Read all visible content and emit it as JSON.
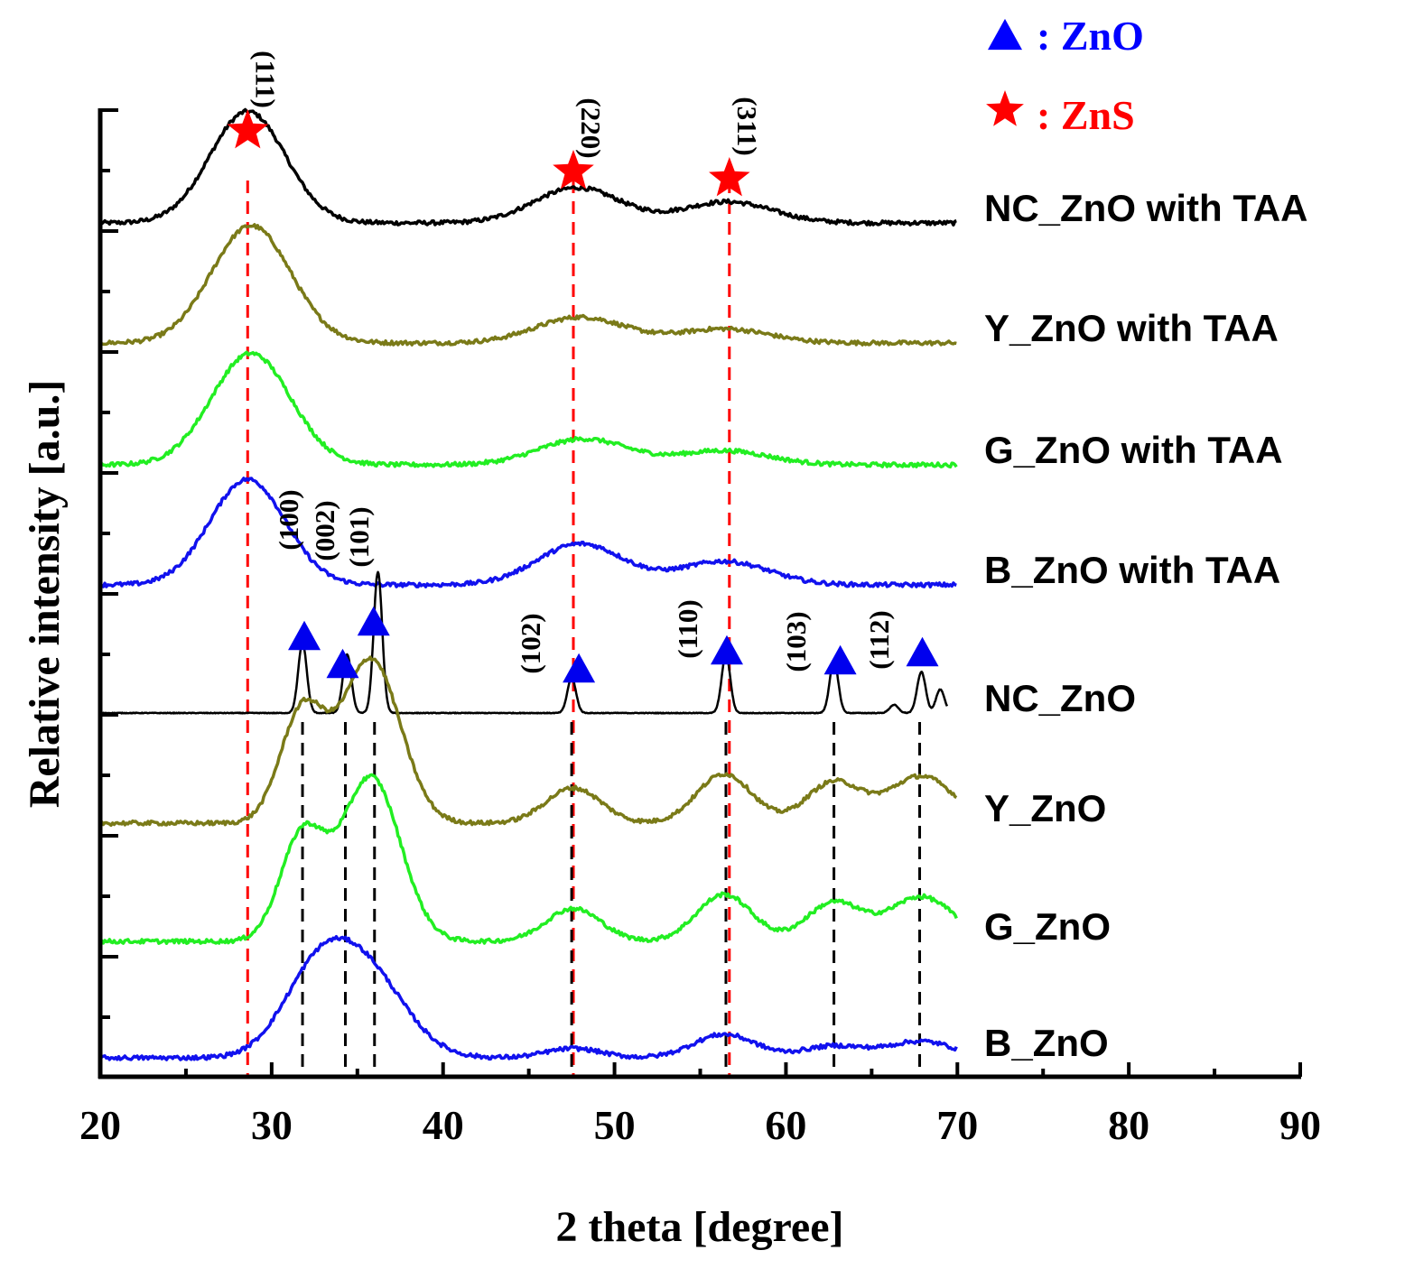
{
  "chart_data": {
    "type": "line",
    "title": "",
    "xlabel": "2 theta [degree]",
    "ylabel": "Relative intensity [a.u.]",
    "xlim": [
      20,
      90
    ],
    "xticks": [
      "20",
      "30",
      "40",
      "50",
      "60",
      "70",
      "80",
      "90"
    ],
    "y_units": "arbitrary (stacked, offset traces)",
    "series": [
      {
        "name": "NC_ZnO with TAA",
        "color": "#000000",
        "baseline": 0.1,
        "peaks": [
          [
            28.6,
            0.095,
            2.2
          ],
          [
            47.8,
            0.03,
            2.5
          ],
          [
            56.6,
            0.018,
            2.6
          ]
        ]
      },
      {
        "name": "Y_ZnO with TAA",
        "color": "#7a7a18",
        "baseline": 0.1,
        "peaks": [
          [
            28.8,
            0.1,
            2.3
          ],
          [
            48.0,
            0.022,
            2.6
          ],
          [
            56.4,
            0.012,
            2.6
          ]
        ]
      },
      {
        "name": "G_ZnO with TAA",
        "color": "#22ee22",
        "baseline": 0.1,
        "peaks": [
          [
            28.8,
            0.095,
            2.3
          ],
          [
            48.2,
            0.022,
            2.6
          ],
          [
            56.4,
            0.012,
            2.6
          ]
        ]
      },
      {
        "name": "B_ZnO with TAA",
        "color": "#1111ee",
        "baseline": 0.1,
        "peaks": [
          [
            28.6,
            0.09,
            2.2
          ],
          [
            48.0,
            0.035,
            2.5
          ],
          [
            56.4,
            0.02,
            2.6
          ]
        ]
      },
      {
        "name": "NC_ZnO",
        "color": "#000000",
        "baseline": 0.1,
        "peaks": [
          [
            31.8,
            0.06,
            0.25
          ],
          [
            34.4,
            0.05,
            0.25
          ],
          [
            36.2,
            0.12,
            0.25
          ],
          [
            47.5,
            0.03,
            0.25
          ],
          [
            56.5,
            0.05,
            0.25
          ],
          [
            62.8,
            0.045,
            0.25
          ],
          [
            66.3,
            0.007,
            0.25
          ],
          [
            67.9,
            0.035,
            0.25
          ],
          [
            69.0,
            0.02,
            0.25
          ]
        ]
      },
      {
        "name": "Y_ZnO",
        "color": "#7a7a18",
        "baseline": 0.1,
        "peaks": [
          [
            31.8,
            0.095,
            1.3
          ],
          [
            35.8,
            0.14,
            1.7
          ],
          [
            47.6,
            0.03,
            1.6
          ],
          [
            56.4,
            0.042,
            1.6
          ],
          [
            62.8,
            0.035,
            1.6
          ],
          [
            67.9,
            0.04,
            1.9
          ]
        ]
      },
      {
        "name": "G_ZnO",
        "color": "#22ee22",
        "baseline": 0.1,
        "peaks": [
          [
            31.8,
            0.09,
            1.3
          ],
          [
            35.8,
            0.14,
            1.7
          ],
          [
            47.6,
            0.028,
            1.6
          ],
          [
            56.4,
            0.04,
            1.6
          ],
          [
            62.8,
            0.033,
            1.6
          ],
          [
            67.9,
            0.038,
            1.9
          ]
        ]
      },
      {
        "name": "B_ZnO",
        "color": "#1111ee",
        "baseline": 0.1,
        "peaks": [
          [
            32.5,
            0.06,
            2.0
          ],
          [
            35.5,
            0.07,
            2.3
          ],
          [
            47.6,
            0.008,
            1.6
          ],
          [
            56.4,
            0.02,
            1.8
          ],
          [
            62.8,
            0.01,
            1.8
          ],
          [
            67.9,
            0.014,
            1.9
          ]
        ]
      }
    ],
    "reference_lines": {
      "ZnS": {
        "color": "#ff0000",
        "positions": [
          28.6,
          47.6,
          56.7
        ]
      },
      "ZnO": {
        "color": "#000000",
        "positions": [
          31.8,
          34.3,
          36.0,
          47.5,
          56.5,
          62.8,
          67.8
        ]
      }
    },
    "zns_markers": [
      {
        "x": 28.6,
        "hkl": "(111)"
      },
      {
        "x": 47.6,
        "hkl": "(220)"
      },
      {
        "x": 56.7,
        "hkl": "(311)"
      }
    ],
    "zno_markers": [
      {
        "x": 31.8,
        "hkl": "(100)"
      },
      {
        "x": 34.3,
        "hkl": "(002)"
      },
      {
        "x": 36.0,
        "hkl": "(101)"
      },
      {
        "x": 47.5,
        "hkl": "(102)"
      },
      {
        "x": 56.5,
        "hkl": "(110)"
      },
      {
        "x": 62.8,
        "hkl": "(103)"
      },
      {
        "x": 67.8,
        "hkl": "(112)"
      }
    ],
    "legend": [
      {
        "symbol": "triangle",
        "text": ": ZnO",
        "color": "#0000ff"
      },
      {
        "symbol": "star",
        "text": ": ZnS",
        "color": "#ff0000"
      }
    ]
  }
}
